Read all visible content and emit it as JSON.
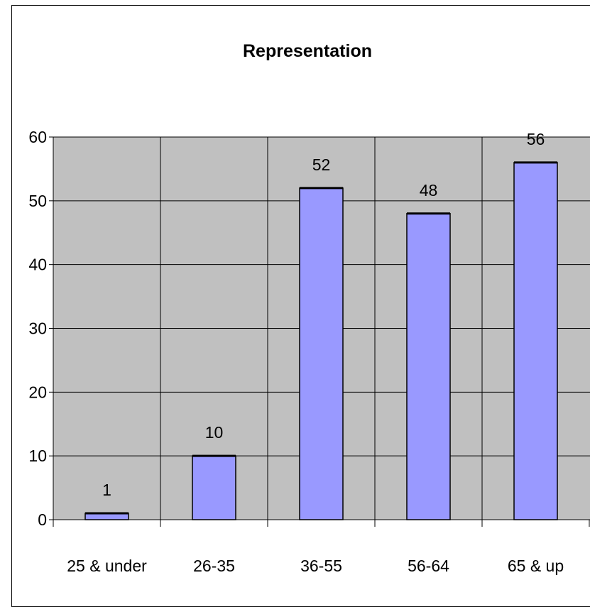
{
  "chart_data": {
    "type": "bar",
    "title": "Representation",
    "xlabel": "",
    "ylabel": "",
    "categories": [
      "25 & under",
      "26-35",
      "36-55",
      "56-64",
      "65 & up"
    ],
    "values": [
      1,
      10,
      52,
      48,
      56
    ],
    "data_labels": [
      "1",
      "10",
      "52",
      "48",
      "56"
    ],
    "ylim": [
      0,
      60
    ],
    "yticks": [
      0,
      10,
      20,
      30,
      40,
      50,
      60
    ],
    "grid": true,
    "legend": "none",
    "colors": {
      "bar_fill": "#9999ff",
      "plot_background": "#c0c0c0",
      "gridline": "#000000",
      "text": "#000000"
    }
  }
}
